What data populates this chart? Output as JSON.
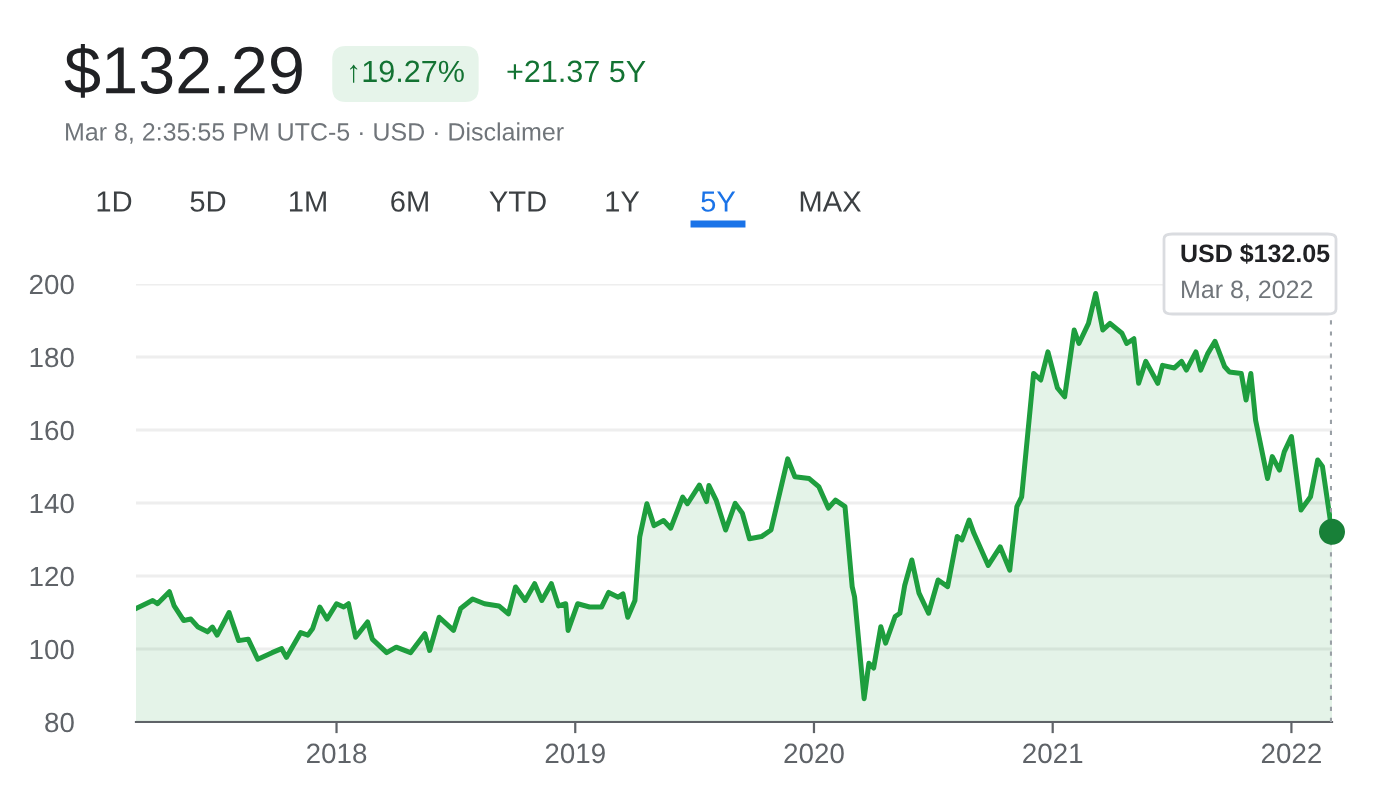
{
  "chart_data": {
    "type": "area",
    "title": "$132.29",
    "subtitle": "Mar 8, 2:35:55 PM UTC-5 · USD · Disclaimer",
    "annotations": [
      "↑19.27%",
      "+21.37 5Y",
      "1D",
      "5D",
      "1M",
      "6M",
      "YTD",
      "1Y",
      "5Y",
      "MAX",
      "USD $132.05\nMar 8, 2022"
    ],
    "series": [
      {
        "color": "#1e9e3e",
        "x": [
          2017.16,
          2017.23,
          2017.25,
          2017.3,
          2017.32,
          2017.36,
          2017.39,
          2017.42,
          2017.46,
          2017.48,
          2017.5,
          2017.55,
          2017.59,
          2017.63,
          2017.67,
          2017.73,
          2017.77,
          2017.79,
          2017.85,
          2017.88,
          2017.9,
          2017.93,
          2017.96,
          2018.0,
          2018.03,
          2018.05,
          2018.08,
          2018.13,
          2018.15,
          2018.21,
          2018.25,
          2018.31,
          2018.37,
          2018.39,
          2018.43,
          2018.49,
          2018.52,
          2018.57,
          2018.62,
          2018.68,
          2018.72,
          2018.75,
          2018.79,
          2018.83,
          2018.86,
          2018.9,
          2018.93,
          2018.96,
          2018.97,
          2019.01,
          2019.06,
          2019.11,
          2019.14,
          2019.18,
          2019.2,
          2019.22,
          2019.25,
          2019.27,
          2019.3,
          2019.33,
          2019.37,
          2019.4,
          2019.45,
          2019.47,
          2019.52,
          2019.55,
          2019.56,
          2019.59,
          2019.63,
          2019.67,
          2019.7,
          2019.73,
          2019.78,
          2019.82,
          2019.89,
          2019.92,
          2019.98,
          2020.02,
          2020.06,
          2020.09,
          2020.13,
          2020.16,
          2020.17,
          2020.21,
          2020.23,
          2020.25,
          2020.28,
          2020.3,
          2020.34,
          2020.36,
          2020.38,
          2020.41,
          2020.44,
          2020.48,
          2020.52,
          2020.56,
          2020.6,
          2020.62,
          2020.65,
          2020.67,
          2020.73,
          2020.78,
          2020.82,
          2020.85,
          2020.87,
          2020.92,
          2020.95,
          2020.98,
          2021.02,
          2021.05,
          2021.09,
          2021.11,
          2021.15,
          2021.18,
          2021.21,
          2021.24,
          2021.29,
          2021.31,
          2021.34,
          2021.36,
          2021.39,
          2021.44,
          2021.46,
          2021.51,
          2021.54,
          2021.56,
          2021.6,
          2021.62,
          2021.65,
          2021.68,
          2021.72,
          2021.74,
          2021.79,
          2021.81,
          2021.83,
          2021.85,
          2021.9,
          2021.92,
          2021.95,
          2021.97,
          2022.0,
          2022.04,
          2022.08,
          2022.11,
          2022.13,
          2022.17
        ],
        "values": [
          111.1,
          113.3,
          112.4,
          115.7,
          111.8,
          107.8,
          108.2,
          106.0,
          104.7,
          106.0,
          103.8,
          110.0,
          102.3,
          102.7,
          97.2,
          99.0,
          100.1,
          97.7,
          104.5,
          103.8,
          105.6,
          111.5,
          108.2,
          112.4,
          111.5,
          112.4,
          103.2,
          107.4,
          102.7,
          99.0,
          100.5,
          99.0,
          104.2,
          99.6,
          108.7,
          105.1,
          111.1,
          113.7,
          112.4,
          111.8,
          109.6,
          117.0,
          113.3,
          117.9,
          113.3,
          117.9,
          111.8,
          112.4,
          105.1,
          112.4,
          111.5,
          111.5,
          115.5,
          114.2,
          115.1,
          108.7,
          113.3,
          130.7,
          139.8,
          133.8,
          135.2,
          133.1,
          141.6,
          139.8,
          144.9,
          140.4,
          144.8,
          140.8,
          132.6,
          139.9,
          137.2,
          130.2,
          130.8,
          132.6,
          152.1,
          147.2,
          146.7,
          144.5,
          138.6,
          140.8,
          139.0,
          117.1,
          114.3,
          86.4,
          96.1,
          94.8,
          106.1,
          101.6,
          108.9,
          109.8,
          117.4,
          124.4,
          115.3,
          109.8,
          118.9,
          117.1,
          130.8,
          129.9,
          135.3,
          131.7,
          122.9,
          128.0,
          121.6,
          139.0,
          141.7,
          175.5,
          173.7,
          181.4,
          171.5,
          169.1,
          187.4,
          183.7,
          189.2,
          197.4,
          187.4,
          189.2,
          186.5,
          183.7,
          185.0,
          172.8,
          178.8,
          172.8,
          177.7,
          177.0,
          178.8,
          176.4,
          181.4,
          176.4,
          181.0,
          184.3,
          177.4,
          175.9,
          175.5,
          168.2,
          175.5,
          162.7,
          146.7,
          152.7,
          149.0,
          154.0,
          158.2,
          138.1,
          141.7,
          151.8,
          150.0,
          132.1
        ]
      },
      {
        "type": "scatter",
        "marker": "circle",
        "color": "#188038",
        "x": [
          2022.17
        ],
        "values": [
          132.1
        ]
      }
    ],
    "ref_lines": [
      {
        "axis": "x",
        "value": 2022.17,
        "color": "#9aa0a6",
        "line_style": "dotted"
      }
    ],
    "xlim": [
      2017.16,
      2022.17
    ],
    "ylim": [
      80,
      200
    ],
    "xticks": [
      2018,
      2019,
      2020,
      2021,
      2022
    ],
    "yticks": [
      80,
      100,
      120,
      140,
      160,
      180,
      200
    ],
    "grid": "y"
  }
}
